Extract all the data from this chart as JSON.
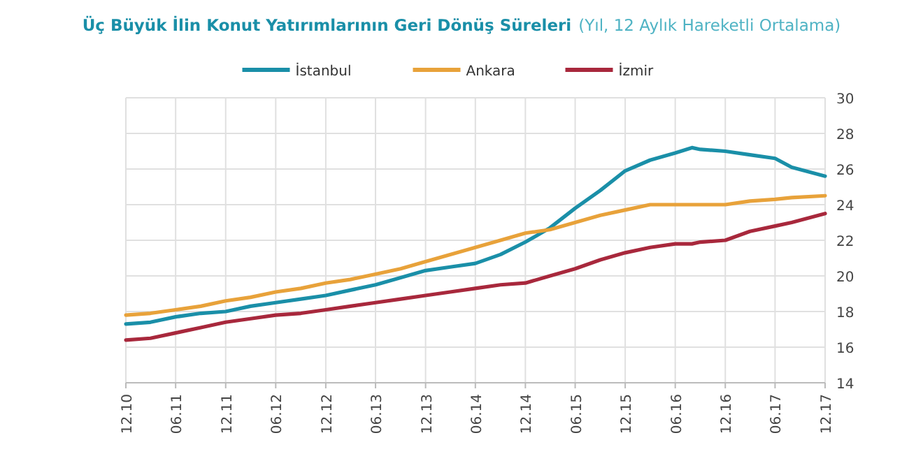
{
  "chart_data": {
    "type": "line",
    "title": "Üç Büyük İlin Konut Yatırımlarının Geri Dönüş Süreleri",
    "subtitle": "(Yıl, 12 Aylık Hareketli Ortalama)",
    "x": [
      "2010-12",
      "2011-03",
      "2011-06",
      "2011-09",
      "2011-12",
      "2012-03",
      "2012-06",
      "2012-09",
      "2012-12",
      "2013-03",
      "2013-06",
      "2013-09",
      "2013-12",
      "2014-03",
      "2014-06",
      "2014-09",
      "2014-12",
      "2015-03",
      "2015-06",
      "2015-09",
      "2015-12",
      "2016-03",
      "2016-06",
      "2016-08",
      "2016-09",
      "2016-12",
      "2017-03",
      "2017-06",
      "2017-08",
      "2017-12"
    ],
    "series": [
      {
        "name": "İstanbul",
        "color": "#1a8fa8",
        "values": [
          17.3,
          17.4,
          17.7,
          17.9,
          18.0,
          18.3,
          18.5,
          18.7,
          18.9,
          19.2,
          19.5,
          19.9,
          20.3,
          20.5,
          20.7,
          21.2,
          21.9,
          22.7,
          23.8,
          24.8,
          25.9,
          26.5,
          26.9,
          27.2,
          27.1,
          27.0,
          26.8,
          26.6,
          26.1,
          25.6
        ]
      },
      {
        "name": "Ankara",
        "color": "#e8a23a",
        "values": [
          17.8,
          17.9,
          18.1,
          18.3,
          18.6,
          18.8,
          19.1,
          19.3,
          19.6,
          19.8,
          20.1,
          20.4,
          20.8,
          21.2,
          21.6,
          22.0,
          22.4,
          22.6,
          23.0,
          23.4,
          23.7,
          24.0,
          24.0,
          24.0,
          24.0,
          24.0,
          24.2,
          24.3,
          24.4,
          24.5
        ]
      },
      {
        "name": "İzmir",
        "color": "#a8283c",
        "values": [
          16.4,
          16.5,
          16.8,
          17.1,
          17.4,
          17.6,
          17.8,
          17.9,
          18.1,
          18.3,
          18.5,
          18.7,
          18.9,
          19.1,
          19.3,
          19.5,
          19.6,
          20.0,
          20.4,
          20.9,
          21.3,
          21.6,
          21.8,
          21.8,
          21.9,
          22.0,
          22.5,
          22.8,
          23.0,
          23.5
        ]
      }
    ],
    "xlim": [
      "2010-12",
      "2017-12"
    ],
    "xticks": [
      {
        "value": "2010-12",
        "label": "12.10"
      },
      {
        "value": "2011-06",
        "label": "06.11"
      },
      {
        "value": "2011-12",
        "label": "12.11"
      },
      {
        "value": "2012-06",
        "label": "06.12"
      },
      {
        "value": "2012-12",
        "label": "12.12"
      },
      {
        "value": "2013-06",
        "label": "06.13"
      },
      {
        "value": "2013-12",
        "label": "12.13"
      },
      {
        "value": "2014-06",
        "label": "06.14"
      },
      {
        "value": "2014-12",
        "label": "12.14"
      },
      {
        "value": "2015-06",
        "label": "06.15"
      },
      {
        "value": "2015-12",
        "label": "12.15"
      },
      {
        "value": "2016-06",
        "label": "06.16"
      },
      {
        "value": "2016-12",
        "label": "12.16"
      },
      {
        "value": "2017-06",
        "label": "06.17"
      },
      {
        "value": "2017-12",
        "label": "12.17"
      }
    ],
    "ylim": [
      14,
      30
    ],
    "yticks": [
      14,
      16,
      18,
      20,
      22,
      24,
      26,
      28,
      30
    ],
    "grid": true,
    "legend": "top",
    "marker": "none",
    "line_style": "solid"
  }
}
